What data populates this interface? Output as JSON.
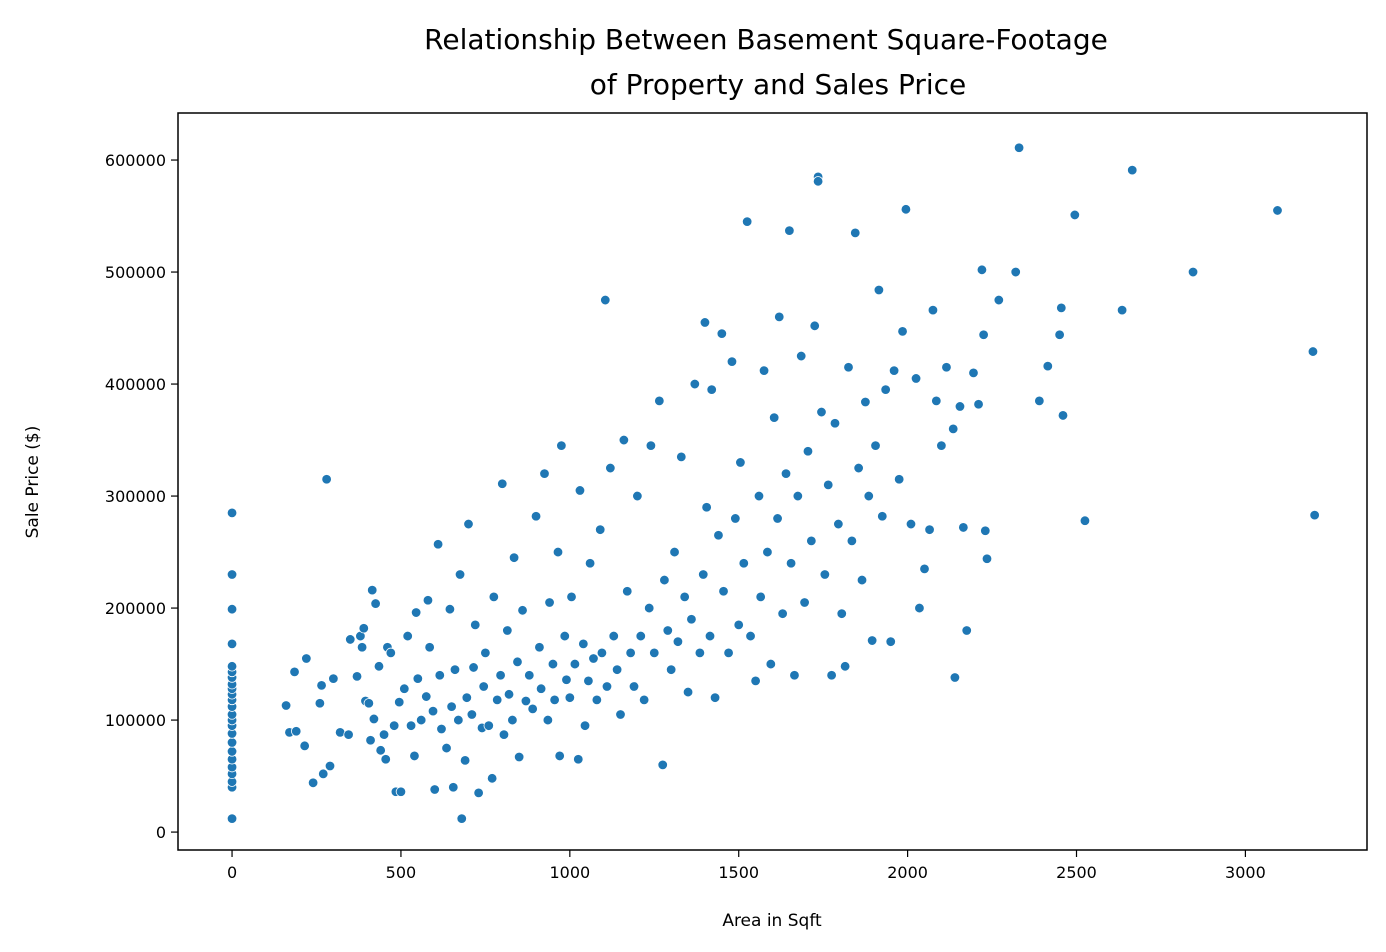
{
  "chart_data": {
    "type": "scatter",
    "title_lines": [
      "Relationship Between Basement Square-Footage",
      "of Property and Sales Price"
    ],
    "xlabel": "Area in Sqft",
    "ylabel": "Sale Price ($)",
    "xlim": [
      -160,
      3360
    ],
    "ylim": [
      -16000,
      642000
    ],
    "xticks": [
      0,
      500,
      1000,
      1500,
      2000,
      2500,
      3000
    ],
    "yticks": [
      0,
      100000,
      200000,
      300000,
      400000,
      500000,
      600000
    ],
    "grid": false,
    "marker_color": "#1f77b4",
    "marker_edge_color": "#ffffff",
    "series": [
      {
        "points": [
          [
            0,
            12000
          ],
          [
            0,
            40000
          ],
          [
            0,
            45000
          ],
          [
            0,
            52000
          ],
          [
            0,
            58000
          ],
          [
            0,
            65000
          ],
          [
            0,
            72000
          ],
          [
            0,
            80000
          ],
          [
            0,
            88000
          ],
          [
            0,
            95000
          ],
          [
            0,
            100000
          ],
          [
            0,
            105000
          ],
          [
            0,
            112000
          ],
          [
            0,
            118000
          ],
          [
            0,
            123000
          ],
          [
            0,
            128000
          ],
          [
            0,
            132000
          ],
          [
            0,
            138000
          ],
          [
            0,
            143000
          ],
          [
            0,
            148000
          ],
          [
            0,
            168000
          ],
          [
            0,
            199000
          ],
          [
            0,
            230000
          ],
          [
            0,
            285000
          ],
          [
            160,
            113000
          ],
          [
            170,
            89000
          ],
          [
            185,
            143000
          ],
          [
            190,
            90000
          ],
          [
            215,
            77000
          ],
          [
            220,
            155000
          ],
          [
            240,
            44000
          ],
          [
            260,
            115000
          ],
          [
            265,
            131000
          ],
          [
            270,
            52000
          ],
          [
            280,
            315000
          ],
          [
            290,
            59000
          ],
          [
            300,
            137000
          ],
          [
            320,
            89000
          ],
          [
            345,
            87000
          ],
          [
            350,
            172000
          ],
          [
            370,
            139000
          ],
          [
            380,
            175000
          ],
          [
            385,
            165000
          ],
          [
            390,
            182000
          ],
          [
            395,
            117000
          ],
          [
            405,
            115000
          ],
          [
            410,
            82000
          ],
          [
            415,
            216000
          ],
          [
            420,
            101000
          ],
          [
            425,
            204000
          ],
          [
            435,
            148000
          ],
          [
            440,
            73000
          ],
          [
            450,
            87000
          ],
          [
            455,
            65000
          ],
          [
            460,
            165000
          ],
          [
            470,
            160000
          ],
          [
            480,
            95000
          ],
          [
            485,
            36000
          ],
          [
            495,
            116000
          ],
          [
            500,
            36000
          ],
          [
            510,
            128000
          ],
          [
            520,
            175000
          ],
          [
            530,
            95000
          ],
          [
            540,
            68000
          ],
          [
            545,
            196000
          ],
          [
            550,
            137000
          ],
          [
            560,
            100000
          ],
          [
            575,
            121000
          ],
          [
            580,
            207000
          ],
          [
            585,
            165000
          ],
          [
            595,
            108000
          ],
          [
            600,
            38000
          ],
          [
            610,
            257000
          ],
          [
            615,
            140000
          ],
          [
            620,
            92000
          ],
          [
            635,
            75000
          ],
          [
            645,
            199000
          ],
          [
            650,
            112000
          ],
          [
            655,
            40000
          ],
          [
            660,
            145000
          ],
          [
            670,
            100000
          ],
          [
            675,
            230000
          ],
          [
            680,
            12000
          ],
          [
            690,
            64000
          ],
          [
            695,
            120000
          ],
          [
            700,
            275000
          ],
          [
            710,
            105000
          ],
          [
            715,
            147000
          ],
          [
            720,
            185000
          ],
          [
            730,
            35000
          ],
          [
            740,
            93000
          ],
          [
            745,
            130000
          ],
          [
            750,
            160000
          ],
          [
            760,
            95000
          ],
          [
            770,
            48000
          ],
          [
            775,
            210000
          ],
          [
            785,
            118000
          ],
          [
            795,
            140000
          ],
          [
            800,
            311000
          ],
          [
            805,
            87000
          ],
          [
            815,
            180000
          ],
          [
            820,
            123000
          ],
          [
            830,
            100000
          ],
          [
            835,
            245000
          ],
          [
            845,
            152000
          ],
          [
            850,
            67000
          ],
          [
            860,
            198000
          ],
          [
            870,
            117000
          ],
          [
            880,
            140000
          ],
          [
            890,
            110000
          ],
          [
            900,
            282000
          ],
          [
            910,
            165000
          ],
          [
            915,
            128000
          ],
          [
            925,
            320000
          ],
          [
            935,
            100000
          ],
          [
            940,
            205000
          ],
          [
            950,
            150000
          ],
          [
            955,
            118000
          ],
          [
            965,
            250000
          ],
          [
            970,
            68000
          ],
          [
            975,
            345000
          ],
          [
            985,
            175000
          ],
          [
            990,
            136000
          ],
          [
            1000,
            120000
          ],
          [
            1005,
            210000
          ],
          [
            1015,
            150000
          ],
          [
            1025,
            65000
          ],
          [
            1030,
            305000
          ],
          [
            1040,
            168000
          ],
          [
            1045,
            95000
          ],
          [
            1055,
            135000
          ],
          [
            1060,
            240000
          ],
          [
            1070,
            155000
          ],
          [
            1080,
            118000
          ],
          [
            1090,
            270000
          ],
          [
            1095,
            160000
          ],
          [
            1105,
            475000
          ],
          [
            1110,
            130000
          ],
          [
            1120,
            325000
          ],
          [
            1130,
            175000
          ],
          [
            1140,
            145000
          ],
          [
            1150,
            105000
          ],
          [
            1160,
            350000
          ],
          [
            1170,
            215000
          ],
          [
            1180,
            160000
          ],
          [
            1190,
            130000
          ],
          [
            1200,
            300000
          ],
          [
            1210,
            175000
          ],
          [
            1220,
            118000
          ],
          [
            1235,
            200000
          ],
          [
            1240,
            345000
          ],
          [
            1250,
            160000
          ],
          [
            1265,
            385000
          ],
          [
            1275,
            60000
          ],
          [
            1280,
            225000
          ],
          [
            1290,
            180000
          ],
          [
            1300,
            145000
          ],
          [
            1310,
            250000
          ],
          [
            1320,
            170000
          ],
          [
            1330,
            335000
          ],
          [
            1340,
            210000
          ],
          [
            1350,
            125000
          ],
          [
            1360,
            190000
          ],
          [
            1370,
            400000
          ],
          [
            1385,
            160000
          ],
          [
            1395,
            230000
          ],
          [
            1400,
            455000
          ],
          [
            1405,
            290000
          ],
          [
            1415,
            175000
          ],
          [
            1420,
            395000
          ],
          [
            1430,
            120000
          ],
          [
            1440,
            265000
          ],
          [
            1450,
            445000
          ],
          [
            1455,
            215000
          ],
          [
            1470,
            160000
          ],
          [
            1480,
            420000
          ],
          [
            1490,
            280000
          ],
          [
            1500,
            185000
          ],
          [
            1505,
            330000
          ],
          [
            1515,
            240000
          ],
          [
            1525,
            545000
          ],
          [
            1535,
            175000
          ],
          [
            1550,
            135000
          ],
          [
            1560,
            300000
          ],
          [
            1565,
            210000
          ],
          [
            1575,
            412000
          ],
          [
            1585,
            250000
          ],
          [
            1595,
            150000
          ],
          [
            1605,
            370000
          ],
          [
            1615,
            280000
          ],
          [
            1620,
            460000
          ],
          [
            1630,
            195000
          ],
          [
            1640,
            320000
          ],
          [
            1650,
            537000
          ],
          [
            1655,
            240000
          ],
          [
            1665,
            140000
          ],
          [
            1675,
            300000
          ],
          [
            1685,
            425000
          ],
          [
            1695,
            205000
          ],
          [
            1705,
            340000
          ],
          [
            1715,
            260000
          ],
          [
            1725,
            452000
          ],
          [
            1735,
            585000
          ],
          [
            1735,
            581000
          ],
          [
            1745,
            375000
          ],
          [
            1755,
            230000
          ],
          [
            1765,
            310000
          ],
          [
            1775,
            140000
          ],
          [
            1785,
            365000
          ],
          [
            1795,
            275000
          ],
          [
            1805,
            195000
          ],
          [
            1815,
            148000
          ],
          [
            1825,
            415000
          ],
          [
            1835,
            260000
          ],
          [
            1845,
            535000
          ],
          [
            1855,
            325000
          ],
          [
            1865,
            225000
          ],
          [
            1875,
            384000
          ],
          [
            1885,
            300000
          ],
          [
            1895,
            171000
          ],
          [
            1905,
            345000
          ],
          [
            1915,
            484000
          ],
          [
            1925,
            282000
          ],
          [
            1935,
            395000
          ],
          [
            1950,
            170000
          ],
          [
            1960,
            412000
          ],
          [
            1975,
            315000
          ],
          [
            1985,
            447000
          ],
          [
            1995,
            556000
          ],
          [
            2010,
            275000
          ],
          [
            2025,
            405000
          ],
          [
            2035,
            200000
          ],
          [
            2050,
            235000
          ],
          [
            2065,
            270000
          ],
          [
            2075,
            466000
          ],
          [
            2085,
            385000
          ],
          [
            2100,
            345000
          ],
          [
            2115,
            415000
          ],
          [
            2135,
            360000
          ],
          [
            2140,
            138000
          ],
          [
            2155,
            380000
          ],
          [
            2165,
            272000
          ],
          [
            2175,
            180000
          ],
          [
            2195,
            410000
          ],
          [
            2210,
            382000
          ],
          [
            2220,
            502000
          ],
          [
            2225,
            444000
          ],
          [
            2230,
            269000
          ],
          [
            2235,
            244000
          ],
          [
            2270,
            475000
          ],
          [
            2320,
            500000
          ],
          [
            2330,
            611000
          ],
          [
            2390,
            385000
          ],
          [
            2415,
            416000
          ],
          [
            2450,
            444000
          ],
          [
            2455,
            468000
          ],
          [
            2460,
            372000
          ],
          [
            2495,
            551000
          ],
          [
            2525,
            278000
          ],
          [
            2635,
            466000
          ],
          [
            2665,
            591000
          ],
          [
            2845,
            500000
          ],
          [
            3095,
            555000
          ],
          [
            3200,
            429000
          ],
          [
            3205,
            283000
          ]
        ]
      }
    ]
  }
}
